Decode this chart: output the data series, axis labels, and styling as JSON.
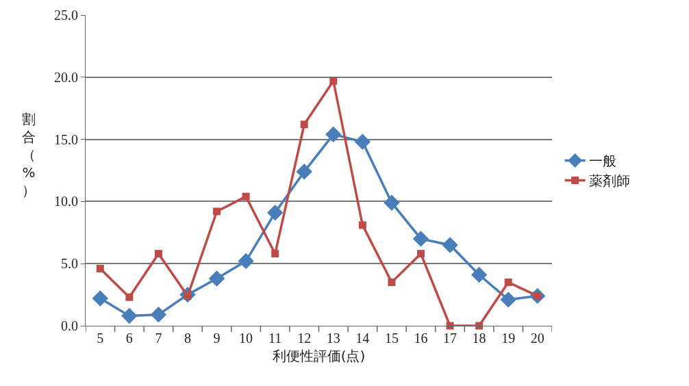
{
  "chart_data": {
    "type": "line",
    "xlabel": "利便性評価(点)",
    "ylabel": "割合（%）",
    "categories": [
      "5",
      "6",
      "7",
      "8",
      "9",
      "10",
      "11",
      "12",
      "13",
      "14",
      "15",
      "16",
      "17",
      "18",
      "19",
      "20"
    ],
    "series": [
      {
        "name": "一般",
        "color": "#4a7ebb",
        "marker": "diamond",
        "values": [
          2.2,
          0.8,
          0.9,
          2.5,
          3.8,
          5.2,
          9.1,
          12.4,
          15.4,
          14.8,
          9.9,
          7.0,
          6.5,
          4.1,
          2.1,
          2.4
        ]
      },
      {
        "name": "薬剤師",
        "color": "#be4b48",
        "marker": "square",
        "values": [
          4.6,
          2.3,
          5.8,
          2.4,
          9.2,
          10.4,
          5.8,
          16.2,
          19.7,
          8.1,
          3.5,
          5.8,
          0.0,
          0.0,
          3.5,
          2.4
        ]
      }
    ],
    "ylim": [
      0,
      25
    ],
    "yticks": [
      {
        "value": 0,
        "label": "0.0"
      },
      {
        "value": 5,
        "label": "5.0"
      },
      {
        "value": 10,
        "label": "10.0"
      },
      {
        "value": 15,
        "label": "15.0"
      },
      {
        "value": 20,
        "label": "20.0"
      },
      {
        "value": 25,
        "label": "25.0"
      }
    ],
    "grid": "y",
    "legend": "right"
  }
}
